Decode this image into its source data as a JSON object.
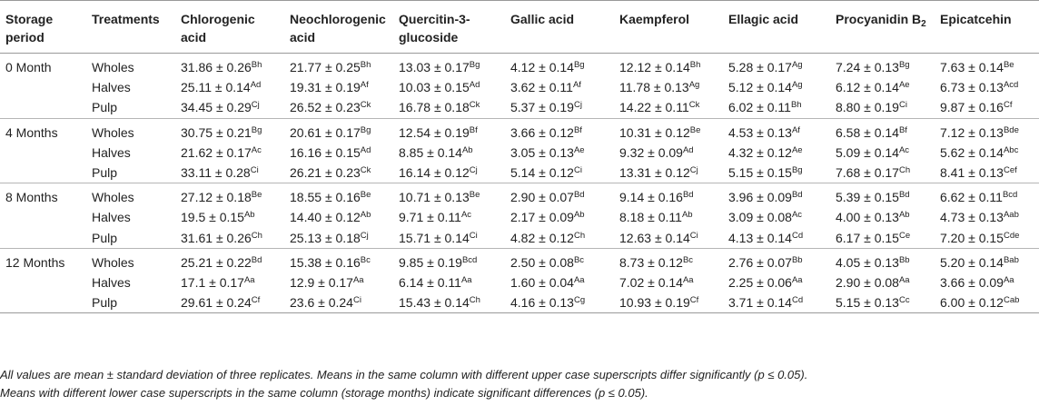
{
  "headers": {
    "storage_period": "Storage period",
    "treatments": "Treatments",
    "compounds": [
      {
        "label": "Chlorogenic acid"
      },
      {
        "label": "Neochlorogenic acid"
      },
      {
        "label": "Quercitin-3-glucoside"
      },
      {
        "label": "Gallic acid"
      },
      {
        "label": "Kaempferol"
      },
      {
        "label": "Ellagic acid"
      },
      {
        "label": "Procyanidin B",
        "sub": "2"
      },
      {
        "label": "Epicatcehin"
      }
    ]
  },
  "pm": "±",
  "groups": [
    {
      "period": "0 Month",
      "rows": [
        {
          "treatment": "Wholes",
          "cells": [
            [
              "31.86",
              "0.26",
              "Bh"
            ],
            [
              "21.77",
              "0.25",
              "Bh"
            ],
            [
              "13.03",
              "0.17",
              "Bg"
            ],
            [
              "4.12",
              "0.14",
              "Bg"
            ],
            [
              "12.12",
              "0.14",
              "Bh"
            ],
            [
              "5.28",
              "0.17",
              "Ag"
            ],
            [
              "7.24",
              "0.13",
              "Bg"
            ],
            [
              "7.63",
              "0.14",
              "Be"
            ]
          ]
        },
        {
          "treatment": "Halves",
          "cells": [
            [
              "25.11",
              "0.14",
              "Ad"
            ],
            [
              "19.31",
              "0.19",
              "Af"
            ],
            [
              "10.03",
              "0.15",
              "Ad"
            ],
            [
              "3.62",
              "0.11",
              "Af"
            ],
            [
              "11.78",
              "0.13",
              "Ag"
            ],
            [
              "5.12",
              "0.14",
              "Ag"
            ],
            [
              "6.12",
              "0.14",
              "Ae"
            ],
            [
              "6.73",
              "0.13",
              "Acd"
            ]
          ]
        },
        {
          "treatment": "Pulp",
          "cells": [
            [
              "34.45",
              "0.29",
              "Cj"
            ],
            [
              "26.52",
              "0.23",
              "Ck"
            ],
            [
              "16.78",
              "0.18",
              "Ck"
            ],
            [
              "5.37",
              "0.19",
              "Cj"
            ],
            [
              "14.22",
              "0.11",
              "Ck"
            ],
            [
              "6.02",
              "0.11",
              "Bh"
            ],
            [
              "8.80",
              "0.19",
              "Ci"
            ],
            [
              "9.87",
              "0.16",
              "Cf"
            ]
          ]
        }
      ]
    },
    {
      "period": "4 Months",
      "rows": [
        {
          "treatment": "Wholes",
          "cells": [
            [
              "30.75",
              "0.21",
              "Bg"
            ],
            [
              "20.61",
              "0.17",
              "Bg"
            ],
            [
              "12.54",
              "0.19",
              "Bf"
            ],
            [
              "3.66",
              "0.12",
              "Bf"
            ],
            [
              "10.31",
              "0.12",
              "Be"
            ],
            [
              "4.53",
              "0.13",
              "Af"
            ],
            [
              "6.58",
              "0.14",
              "Bf"
            ],
            [
              "7.12",
              "0.13",
              "Bde"
            ]
          ]
        },
        {
          "treatment": "Halves",
          "cells": [
            [
              "21.62",
              "0.17",
              "Ac"
            ],
            [
              "16.16",
              "0.15",
              "Ad"
            ],
            [
              "8.85",
              "0.14",
              "Ab"
            ],
            [
              "3.05",
              "0.13",
              "Ae"
            ],
            [
              "9.32",
              "0.09",
              "Ad"
            ],
            [
              "4.32",
              "0.12",
              "Ae"
            ],
            [
              "5.09",
              "0.14",
              "Ac"
            ],
            [
              "5.62",
              "0.14",
              "Abc"
            ]
          ]
        },
        {
          "treatment": "Pulp",
          "cells": [
            [
              "33.11",
              "0.28",
              "Ci"
            ],
            [
              "26.21",
              "0.23",
              "Ck"
            ],
            [
              "16.14",
              "0.12",
              "Cj"
            ],
            [
              "5.14",
              "0.12",
              "Ci"
            ],
            [
              "13.31",
              "0.12",
              "Cj"
            ],
            [
              "5.15",
              "0.15",
              "Bg"
            ],
            [
              "7.68",
              "0.17",
              "Ch"
            ],
            [
              "8.41",
              "0.13",
              "Cef"
            ]
          ]
        }
      ]
    },
    {
      "period": "8 Months",
      "rows": [
        {
          "treatment": "Wholes",
          "cells": [
            [
              "27.12",
              "0.18",
              "Be"
            ],
            [
              "18.55",
              "0.16",
              "Be"
            ],
            [
              "10.71",
              "0.13",
              "Be"
            ],
            [
              "2.90",
              "0.07",
              "Bd"
            ],
            [
              "9.14",
              "0.16",
              "Bd"
            ],
            [
              "3.96",
              "0.09",
              "Bd"
            ],
            [
              "5.39",
              "0.15",
              "Bd"
            ],
            [
              "6.62",
              "0.11",
              "Bcd"
            ]
          ]
        },
        {
          "treatment": "Halves",
          "cells": [
            [
              "19.5",
              "0.15",
              "Ab"
            ],
            [
              "14.40",
              "0.12",
              "Ab"
            ],
            [
              "9.71",
              "0.11",
              "Ac"
            ],
            [
              "2.17",
              "0.09",
              "Ab"
            ],
            [
              "8.18",
              "0.11",
              "Ab"
            ],
            [
              "3.09",
              "0.08",
              "Ac"
            ],
            [
              "4.00",
              "0.13",
              "Ab"
            ],
            [
              "4.73",
              "0.13",
              "Aab"
            ]
          ]
        },
        {
          "treatment": "Pulp",
          "cells": [
            [
              "31.61",
              "0.26",
              "Ch"
            ],
            [
              "25.13",
              "0.18",
              "Cj"
            ],
            [
              "15.71",
              "0.14",
              "Ci"
            ],
            [
              "4.82",
              "0.12",
              "Ch"
            ],
            [
              "12.63",
              "0.14",
              "Ci"
            ],
            [
              "4.13",
              "0.14",
              "Cd"
            ],
            [
              "6.17",
              "0.15",
              "Ce"
            ],
            [
              "7.20",
              "0.15",
              "Cde"
            ]
          ]
        }
      ]
    },
    {
      "period": "12 Months",
      "rows": [
        {
          "treatment": "Wholes",
          "cells": [
            [
              "25.21",
              "0.22",
              "Bd"
            ],
            [
              "15.38",
              "0.16",
              "Bc"
            ],
            [
              "9.85",
              "0.19",
              "Bcd"
            ],
            [
              "2.50",
              "0.08",
              "Bc"
            ],
            [
              "8.73",
              "0.12",
              "Bc"
            ],
            [
              "2.76",
              "0.07",
              "Bb"
            ],
            [
              "4.05",
              "0.13",
              "Bb"
            ],
            [
              "5.20",
              "0.14",
              "Bab"
            ]
          ]
        },
        {
          "treatment": "Halves",
          "cells": [
            [
              "17.1",
              "0.17",
              "Aa"
            ],
            [
              "12.9",
              "0.17",
              "Aa"
            ],
            [
              "6.14",
              "0.11",
              "Aa"
            ],
            [
              "1.60",
              "0.04",
              "Aa"
            ],
            [
              "7.02",
              "0.14",
              "Aa"
            ],
            [
              "2.25",
              "0.06",
              "Aa"
            ],
            [
              "2.90",
              "0.08",
              "Aa"
            ],
            [
              "3.66",
              "0.09",
              "Aa"
            ]
          ]
        },
        {
          "treatment": "Pulp",
          "cells": [
            [
              "29.61",
              "0.24",
              "Cf"
            ],
            [
              "23.6",
              "0.24",
              "Ci"
            ],
            [
              "15.43",
              "0.14",
              "Ch"
            ],
            [
              "4.16",
              "0.13",
              "Cg"
            ],
            [
              "10.93",
              "0.19",
              "Cf"
            ],
            [
              "3.71",
              "0.14",
              "Cd"
            ],
            [
              "5.15",
              "0.13",
              "Cc"
            ],
            [
              "6.00",
              "0.12",
              "Cab"
            ]
          ]
        }
      ]
    }
  ],
  "footnotes": [
    "All values are mean ± standard deviation of three replicates. Means in the same column with different upper case superscripts differ significantly (p ≤ 0.05).",
    "Means with different lower case superscripts in the same column (storage months) indicate significant differences (p ≤ 0.05)."
  ]
}
